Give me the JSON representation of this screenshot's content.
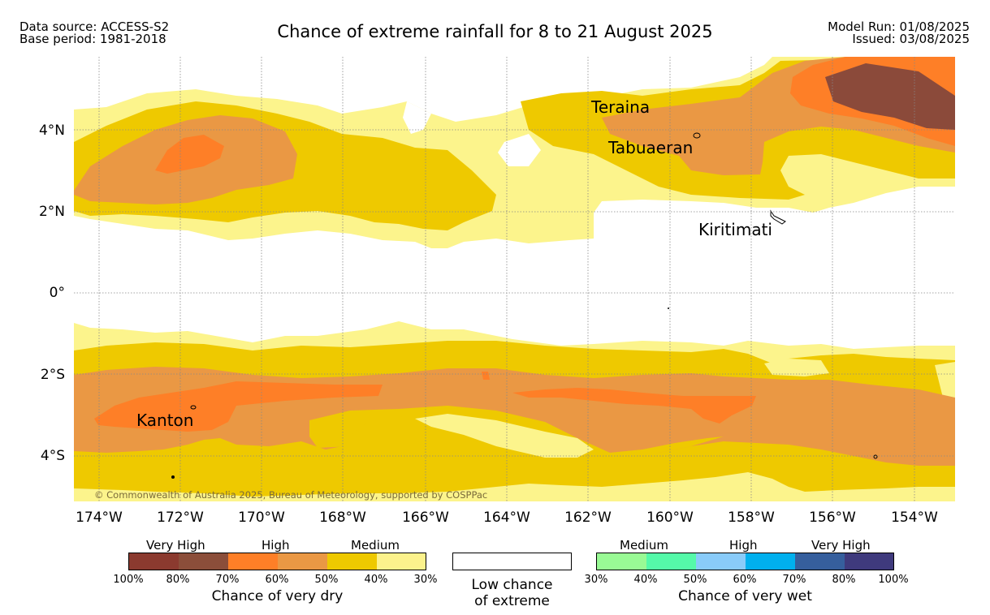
{
  "header": {
    "data_source": "Data source: ACCESS-S2",
    "base_period": "Base period: 1981-2018",
    "title": "Chance of extreme rainfall for 8 to 21 August 2025",
    "model_run": "Model Run: 01/08/2025",
    "issued": "Issued: 03/08/2025"
  },
  "map": {
    "copyright": "© Commonwealth of Australia 2025, Bureau of Meteorology, supported by COSPPac",
    "places": {
      "teraina": "Teraina",
      "tabuaeran": "Tabuaeran",
      "kiritimati": "Kiritimati",
      "kanton": "Kanton"
    },
    "lat_labels": [
      "4°N",
      "2°N",
      "0°",
      "2°S",
      "4°S"
    ],
    "lon_labels": [
      "174°W",
      "172°W",
      "170°W",
      "168°W",
      "166°W",
      "164°W",
      "162°W",
      "160°W",
      "158°W",
      "156°W",
      "154°W"
    ]
  },
  "legend": {
    "dry": {
      "labels": [
        "Very High",
        "High",
        "Medium"
      ],
      "percents": [
        "100%",
        "80%",
        "70%",
        "60%",
        "50%",
        "40%",
        "30%"
      ],
      "colors": [
        "#8b3a2f",
        "#8b4e3a",
        "#fe7f27",
        "#ea9844",
        "#eec900",
        "#fcf28c"
      ],
      "caption": "Chance of very dry"
    },
    "low": {
      "caption_line1": "Low chance",
      "caption_line2": "of extreme"
    },
    "wet": {
      "labels": [
        "Medium",
        "High",
        "Very High"
      ],
      "percents": [
        "30%",
        "40%",
        "50%",
        "60%",
        "70%",
        "80%",
        "100%"
      ],
      "colors": [
        "#99fa95",
        "#55f9a9",
        "#89cbf9",
        "#01b0ee",
        "#365f9d",
        "#3f3a7d"
      ],
      "caption": "Chance of very wet"
    }
  },
  "colors": {
    "light_yellow": "#fcf48c",
    "gold": "#eec900",
    "light_orange": "#ea9844",
    "orange": "#fe7f27",
    "brown": "#8b4a3a"
  }
}
